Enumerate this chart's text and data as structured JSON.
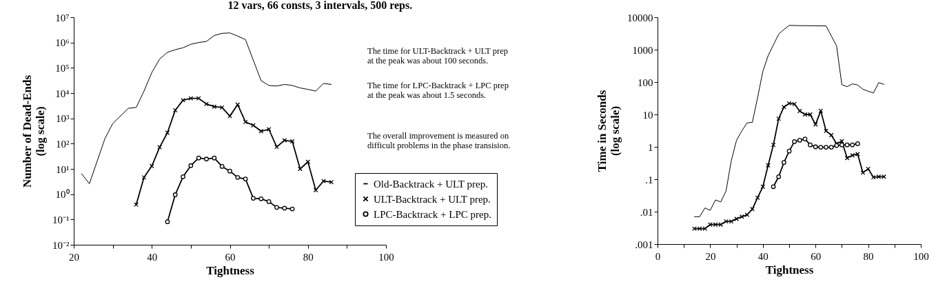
{
  "chart_data": [
    {
      "type": "line",
      "title": "12 vars, 66 consts, 3 intervals, 500 reps.",
      "xlabel": "Tightness",
      "ylabel": "Number of Dead-Ends\n(log scale)",
      "log": "y",
      "annotations": [
        "The time for ULT-Backtrack + ULT prep\nat the peak was about 100 seconds.",
        "The time for LPC-Backtrack + LPC prep\nat the peak was about 1.5 seconds.",
        "The overall improvement is measured on\ndifficult problems in the phase transision."
      ],
      "xlim": [
        20,
        100
      ],
      "xticks": [
        20,
        {
          "value": 30,
          "label": null
        },
        40,
        {
          "value": 50,
          "label": null
        },
        60,
        {
          "value": 70,
          "label": null
        },
        80,
        {
          "value": 90,
          "label": null
        },
        100
      ],
      "ylim": [
        0.01,
        10000000
      ],
      "yticks": [
        {
          "value": 0.01,
          "label": "10⁻²"
        },
        {
          "value": 0.1,
          "label": "10⁻¹"
        },
        {
          "value": 1,
          "label": "10⁰"
        },
        {
          "value": 10,
          "label": "10¹"
        },
        {
          "value": 100,
          "label": "10²"
        },
        {
          "value": 1000,
          "label": "10³"
        },
        {
          "value": 10000,
          "label": "10⁴"
        },
        {
          "value": 100000,
          "label": "10⁵"
        },
        {
          "value": 1000000,
          "label": "10⁶"
        },
        {
          "value": 10000000,
          "label": "10⁷"
        }
      ],
      "grid": false,
      "legend": "bottom right",
      "series": [
        {
          "name": "Old-Backtrack + ULT prep.",
          "color": "#000000",
          "marker": "none",
          "x": [
            22,
            24,
            28,
            30,
            34,
            36,
            38,
            40,
            42,
            44,
            46,
            48,
            50,
            52,
            54,
            56,
            58,
            60,
            62,
            64,
            68,
            70,
            72,
            74,
            76,
            78,
            80,
            82,
            84,
            86
          ],
          "values": [
            6.5,
            2.6,
            160,
            630,
            2500,
            2700,
            12000,
            65000,
            220000,
            410000,
            520000,
            620000,
            850000,
            1000000,
            1100000,
            1900000,
            2300000,
            2400000,
            1800000,
            1300000,
            31000,
            20000,
            19000,
            22000,
            20000,
            16000,
            14000,
            12000,
            24000,
            22000
          ]
        },
        {
          "name": "ULT-Backtrack + ULT prep.",
          "color": "#000000",
          "marker": "cross",
          "x": [
            36,
            38,
            40,
            42,
            44,
            46,
            48,
            50,
            52,
            54,
            56,
            58,
            60,
            62,
            64,
            66,
            68,
            70,
            72,
            74,
            76,
            78,
            80,
            82,
            84,
            86
          ],
          "values": [
            0.39,
            4.6,
            13,
            72,
            270,
            2100,
            5200,
            6200,
            6200,
            3700,
            2900,
            2700,
            1230,
            3500,
            720,
            530,
            310,
            370,
            74,
            135,
            123,
            10,
            19,
            1.45,
            3.3,
            3.0
          ]
        },
        {
          "name": "LPC-Backtrack + LPC prep.",
          "color": "#000000",
          "marker": "circle",
          "x": [
            44,
            46,
            48,
            50,
            52,
            54,
            56,
            58,
            60,
            62,
            64,
            66,
            68,
            70,
            72,
            74,
            76
          ],
          "values": [
            0.081,
            0.95,
            4.9,
            13.5,
            27,
            24.5,
            27,
            12.5,
            8.2,
            4.6,
            4.0,
            0.69,
            0.66,
            0.51,
            0.3,
            0.28,
            0.26
          ]
        }
      ]
    },
    {
      "type": "line",
      "xlabel": "Tightness",
      "ylabel": "Time in Seconds\n(log scale)",
      "log": "y",
      "xlim": [
        0,
        100
      ],
      "xticks": [
        0,
        {
          "value": 10,
          "label": null
        },
        20,
        {
          "value": 30,
          "label": null
        },
        40,
        {
          "value": 50,
          "label": null
        },
        60,
        {
          "value": 70,
          "label": null
        },
        80,
        {
          "value": 90,
          "label": null
        },
        100
      ],
      "ylim": [
        0.001,
        10000
      ],
      "yticks": [
        {
          "value": 0.001,
          "label": ".001"
        },
        {
          "value": 0.01,
          "label": ".01"
        },
        {
          "value": 0.1,
          "label": ".1"
        },
        1,
        10,
        100,
        1000,
        10000
      ],
      "grid": false,
      "series": [
        {
          "color": "#000000",
          "marker": "none",
          "x": [
            14,
            16,
            18,
            20,
            22,
            24,
            26,
            28,
            30,
            32,
            34,
            36,
            38,
            40,
            42,
            46,
            48,
            50,
            54,
            64,
            68,
            70,
            72,
            74,
            76,
            78,
            80,
            82,
            84,
            86
          ],
          "values": [
            0.007,
            0.007,
            0.013,
            0.011,
            0.023,
            0.02,
            0.043,
            0.37,
            1.6,
            3.1,
            5.5,
            5.7,
            33,
            215,
            650,
            3000,
            4200,
            5600,
            5500,
            5400,
            1300,
            83,
            72,
            88,
            81,
            60,
            52,
            46,
            96,
            85
          ]
        },
        {
          "color": "#000000",
          "marker": "cross",
          "x": [
            14,
            16,
            18,
            20,
            22,
            24,
            26,
            28,
            30,
            32,
            34,
            36,
            38,
            40,
            42,
            44,
            46,
            48,
            50,
            52,
            54,
            56,
            58,
            60,
            62,
            64,
            66,
            68,
            70,
            72,
            74,
            76,
            78,
            80,
            82,
            84,
            86
          ],
          "values": [
            0.003,
            0.003,
            0.003,
            0.004,
            0.004,
            0.004,
            0.005,
            0.005,
            0.006,
            0.007,
            0.008,
            0.012,
            0.027,
            0.059,
            0.27,
            1.15,
            7.4,
            17,
            22,
            21,
            12.8,
            10,
            10,
            4.9,
            13,
            3.1,
            2.3,
            1.25,
            1.5,
            0.45,
            0.55,
            0.6,
            0.16,
            0.21,
            0.115,
            0.12,
            0.12
          ]
        },
        {
          "color": "#000000",
          "marker": "circle",
          "x": [
            44,
            46,
            48,
            50,
            52,
            54,
            56,
            58,
            60,
            62,
            64,
            66,
            68,
            70,
            72,
            74,
            76
          ],
          "values": [
            0.059,
            0.12,
            0.33,
            0.74,
            1.45,
            1.6,
            1.75,
            1.15,
            1.0,
            0.97,
            0.97,
            0.97,
            1.1,
            1.15,
            1.15,
            1.15,
            1.25
          ]
        }
      ]
    }
  ]
}
